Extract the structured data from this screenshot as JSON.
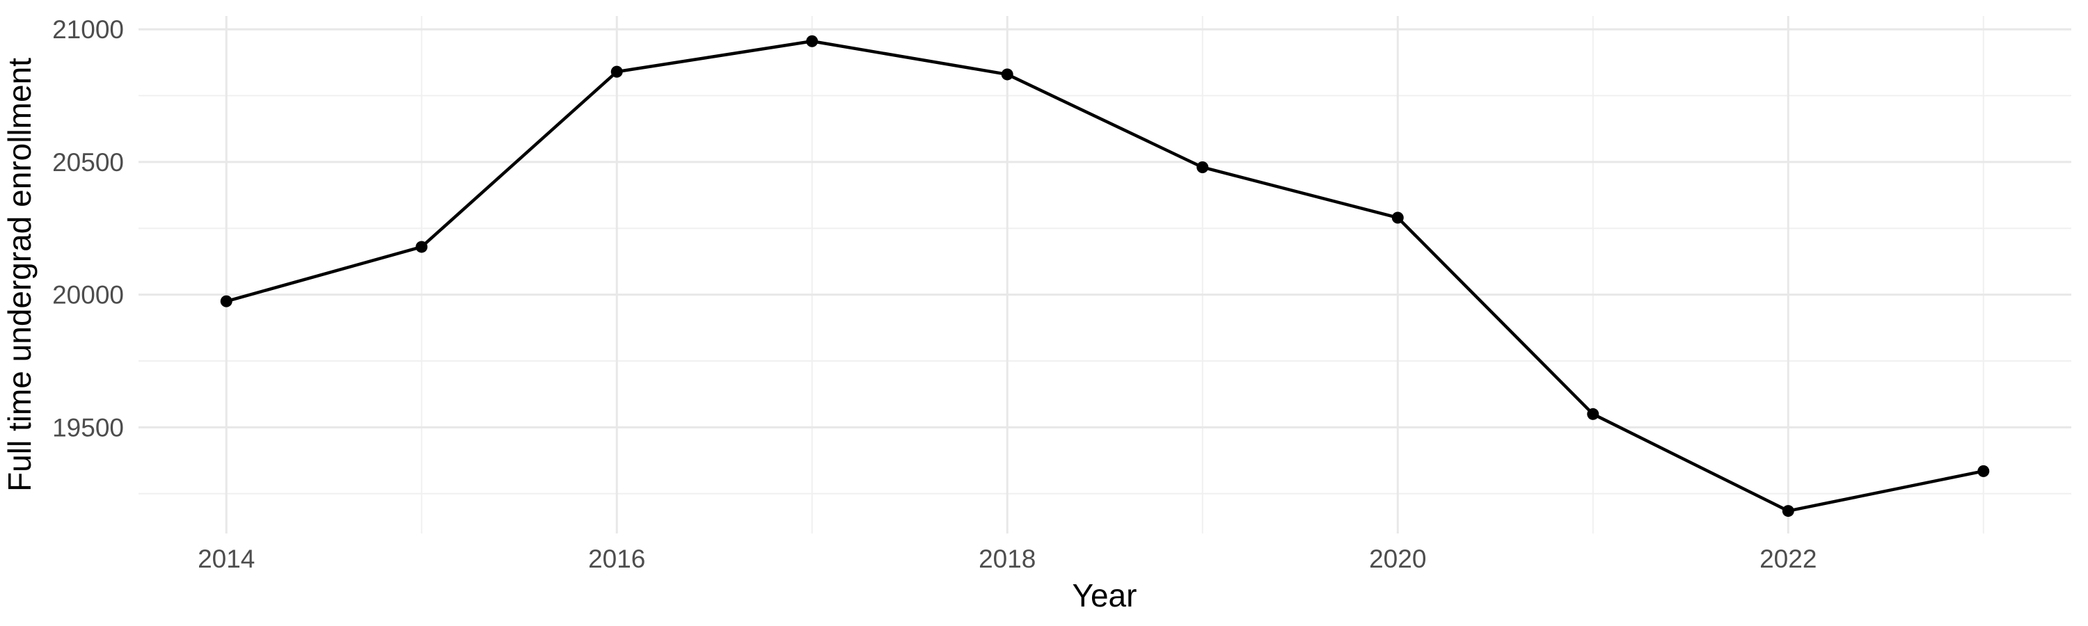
{
  "chart_data": {
    "type": "line",
    "title": "",
    "xlabel": "Year",
    "ylabel": "Full time undergrad enrollment",
    "series": [
      {
        "name": "Full time undergrad enrollment",
        "x": [
          2014,
          2015,
          2016,
          2017,
          2018,
          2019,
          2020,
          2021,
          2022,
          2023
        ],
        "values": [
          19975,
          20180,
          20840,
          20955,
          20830,
          20480,
          20290,
          19550,
          19185,
          19335
        ]
      }
    ],
    "axes": {
      "x_major_ticks": [
        2014,
        2016,
        2018,
        2020,
        2022
      ],
      "x_minor_ticks": [
        2015,
        2017,
        2019,
        2021,
        2023
      ],
      "x_tick_labels": [
        "2014",
        "2016",
        "2018",
        "2020",
        "2022"
      ],
      "y_major_ticks": [
        19500,
        20000,
        20500,
        21000
      ],
      "y_minor_ticks": [
        19250,
        19750,
        20250,
        20750
      ],
      "y_tick_labels": [
        "19500",
        "20000",
        "20500",
        "21000"
      ],
      "xlim": [
        2013.55,
        2023.45
      ],
      "ylim": [
        19100,
        21050
      ],
      "grid": "on",
      "legend": "none"
    },
    "style": {
      "background_color": "#FFFFFF",
      "line_color": "#000000",
      "point_color": "#000000",
      "grid_major_color": "#E8E8E8",
      "grid_minor_color": "#F0F0F0",
      "tick_label_color": "#4D4D4D",
      "axis_title_color": "#000000"
    }
  }
}
